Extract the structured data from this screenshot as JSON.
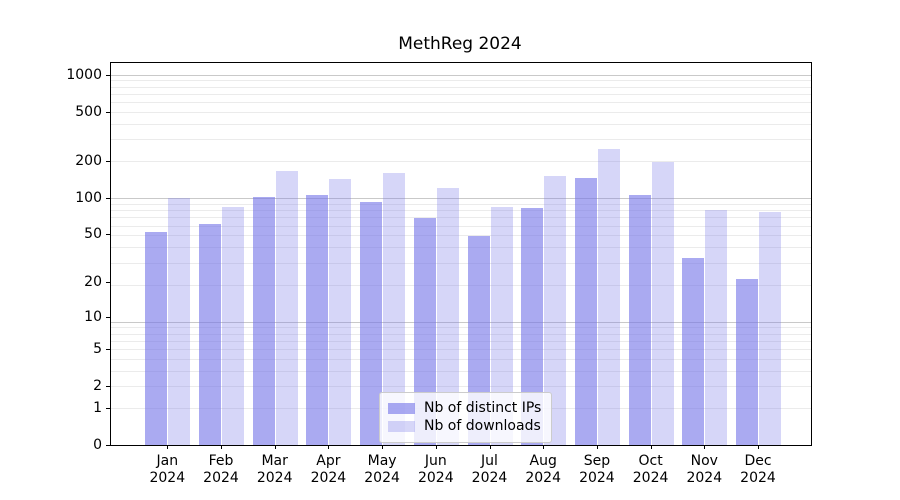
{
  "title": "MethReg 2024",
  "chart_data": {
    "type": "bar",
    "title": "MethReg 2024",
    "scale": "log1p",
    "grid": "both",
    "legend_position": "bottom-center",
    "categories": [
      "Jan",
      "Feb",
      "Mar",
      "Apr",
      "May",
      "Jun",
      "Jul",
      "Aug",
      "Sep",
      "Oct",
      "Nov",
      "Dec"
    ],
    "category_year": "2024",
    "series": [
      {
        "name": "Nb of distinct IPs",
        "color": "rgba(118,118,233,0.62)",
        "values": [
          52,
          61,
          102,
          105,
          92,
          68,
          48,
          82,
          144,
          106,
          32,
          21
        ]
      },
      {
        "name": "Nb of downloads",
        "color": "rgba(118,118,233,0.30)",
        "values": [
          100,
          84,
          165,
          143,
          160,
          120,
          84,
          150,
          248,
          197,
          79,
          76
        ]
      }
    ],
    "yticks": [
      0,
      1,
      2,
      5,
      10,
      20,
      50,
      100,
      200,
      500,
      1000
    ],
    "ylim": [
      0,
      1246
    ],
    "xlabel": "",
    "ylabel": ""
  },
  "colors": {
    "spine": "#000000",
    "grid_major": "#c9c9c9",
    "grid_minor": "#ebebeb",
    "background": "#ffffff"
  }
}
